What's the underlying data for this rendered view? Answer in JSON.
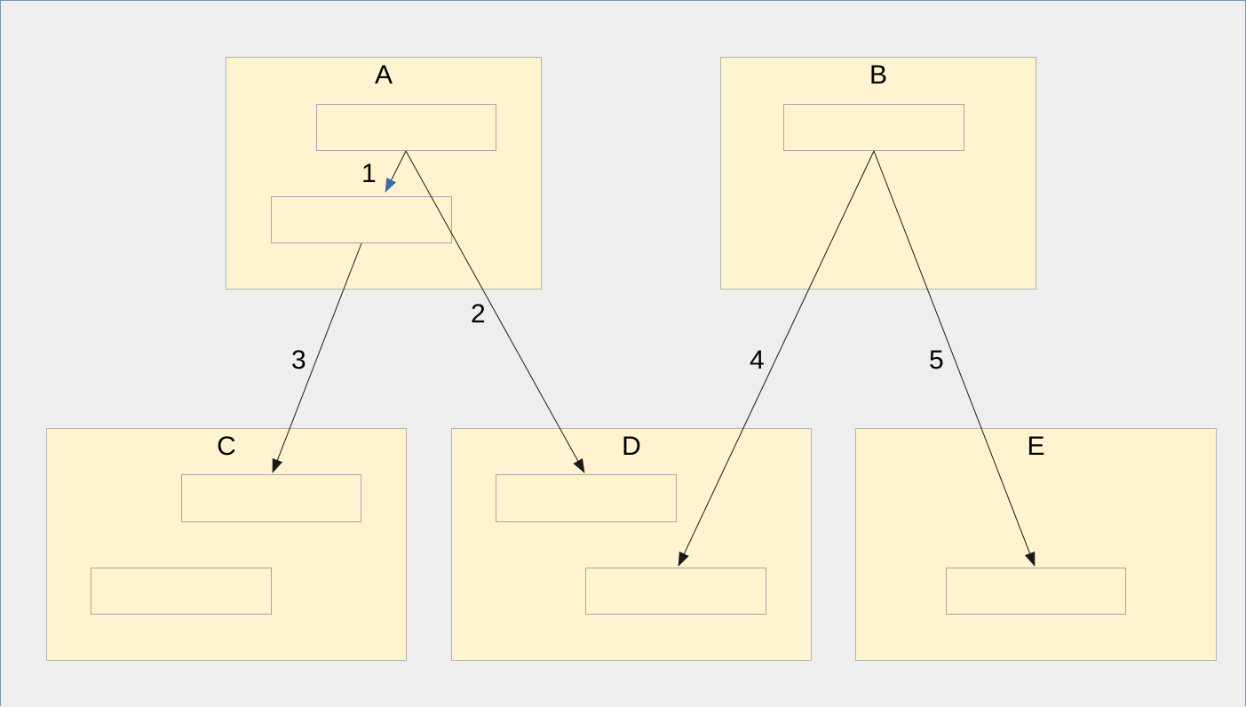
{
  "colors": {
    "background": "#eeeeee",
    "group_fill": "#fff4cf",
    "node_fill": "#fff4cf",
    "edge_stroke": "#1a1a1a",
    "arrow_black": "#1a1a1a",
    "arrow_blue": "#4169aa"
  },
  "groups": [
    {
      "id": "A",
      "label": "A"
    },
    {
      "id": "B",
      "label": "B"
    },
    {
      "id": "C",
      "label": "C"
    },
    {
      "id": "D",
      "label": "D"
    },
    {
      "id": "E",
      "label": "E"
    }
  ],
  "nodes": [
    {
      "id": "a1",
      "group": "A"
    },
    {
      "id": "a2",
      "group": "A"
    },
    {
      "id": "b1",
      "group": "B"
    },
    {
      "id": "c1",
      "group": "C"
    },
    {
      "id": "c2",
      "group": "C"
    },
    {
      "id": "d1",
      "group": "D"
    },
    {
      "id": "d2",
      "group": "D"
    },
    {
      "id": "e1",
      "group": "E"
    }
  ],
  "edges": [
    {
      "id": "edge-1",
      "label": "1",
      "from": "a1",
      "to": "a2",
      "arrow_color": "arrow_blue"
    },
    {
      "id": "edge-2",
      "label": "2",
      "from": "a1",
      "to": "d1",
      "arrow_color": "arrow_black"
    },
    {
      "id": "edge-3",
      "label": "3",
      "from": "a2",
      "to": "c1",
      "arrow_color": "arrow_black"
    },
    {
      "id": "edge-4",
      "label": "4",
      "from": "b1",
      "to": "d2",
      "arrow_color": "arrow_black"
    },
    {
      "id": "edge-5",
      "label": "5",
      "from": "b1",
      "to": "e1",
      "arrow_color": "arrow_black"
    }
  ]
}
